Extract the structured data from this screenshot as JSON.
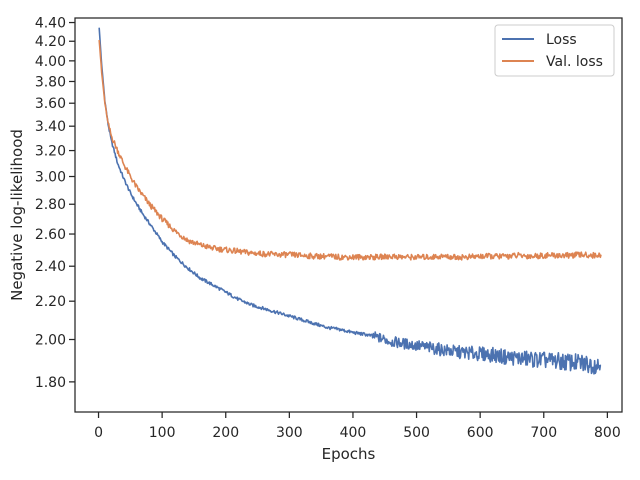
{
  "chart_data": {
    "type": "line",
    "title": "",
    "xlabel": "Epochs",
    "ylabel": "Negative log-likelihood",
    "xlim": [
      -37,
      823
    ],
    "ylim": [
      1.67,
      4.45
    ],
    "yscale": "log",
    "grid": false,
    "legend_position": "top-right",
    "x_ticks": [
      0,
      100,
      200,
      300,
      400,
      500,
      600,
      700,
      800
    ],
    "x_tick_labels": [
      "0",
      "100",
      "200",
      "300",
      "400",
      "500",
      "600",
      "700",
      "800"
    ],
    "y_ticks": [
      1.8,
      2.0,
      2.2,
      2.4,
      2.6,
      2.8,
      3.0,
      3.2,
      3.4,
      3.6,
      3.8,
      4.0,
      4.2,
      4.4
    ],
    "y_tick_labels": [
      "1.80",
      "2.00",
      "2.20",
      "2.40",
      "2.60",
      "2.80",
      "3.00",
      "3.20",
      "3.40",
      "3.60",
      "3.80",
      "4.00",
      "4.20",
      "4.40"
    ],
    "series": [
      {
        "name": "Loss",
        "color": "#4c72b0",
        "x": [
          1,
          5,
          10,
          15,
          20,
          30,
          40,
          50,
          60,
          70,
          80,
          90,
          100,
          120,
          140,
          160,
          180,
          200,
          220,
          240,
          260,
          280,
          300,
          320,
          340,
          360,
          380,
          400,
          420,
          440,
          450,
          460,
          470,
          480,
          490,
          500,
          520,
          540,
          560,
          580,
          600,
          620,
          640,
          660,
          680,
          700,
          720,
          740,
          760,
          780,
          790
        ],
        "y": [
          4.34,
          3.95,
          3.62,
          3.42,
          3.28,
          3.1,
          2.98,
          2.88,
          2.8,
          2.73,
          2.67,
          2.61,
          2.55,
          2.46,
          2.39,
          2.33,
          2.29,
          2.25,
          2.21,
          2.18,
          2.16,
          2.14,
          2.12,
          2.1,
          2.08,
          2.06,
          2.05,
          2.035,
          2.025,
          2.01,
          2.0,
          1.99,
          1.985,
          1.98,
          1.975,
          1.97,
          1.96,
          1.95,
          1.94,
          1.935,
          1.93,
          1.925,
          1.915,
          1.91,
          1.905,
          1.9,
          1.895,
          1.89,
          1.885,
          1.88,
          1.875
        ]
      },
      {
        "name": "Val. loss",
        "color": "#dd8452",
        "x": [
          1,
          5,
          10,
          15,
          20,
          30,
          40,
          50,
          60,
          70,
          80,
          90,
          100,
          120,
          140,
          160,
          180,
          200,
          220,
          240,
          260,
          280,
          300,
          320,
          340,
          360,
          380,
          400,
          420,
          440,
          460,
          480,
          500,
          520,
          540,
          560,
          580,
          600,
          620,
          640,
          660,
          680,
          700,
          720,
          740,
          760,
          780,
          790
        ],
        "y": [
          4.22,
          3.88,
          3.6,
          3.42,
          3.32,
          3.2,
          3.09,
          3.0,
          2.92,
          2.86,
          2.8,
          2.75,
          2.7,
          2.62,
          2.56,
          2.53,
          2.51,
          2.5,
          2.49,
          2.48,
          2.475,
          2.47,
          2.47,
          2.465,
          2.46,
          2.46,
          2.455,
          2.455,
          2.455,
          2.455,
          2.46,
          2.455,
          2.455,
          2.455,
          2.46,
          2.455,
          2.455,
          2.46,
          2.46,
          2.46,
          2.465,
          2.46,
          2.465,
          2.465,
          2.465,
          2.47,
          2.465,
          2.47
        ]
      }
    ]
  }
}
